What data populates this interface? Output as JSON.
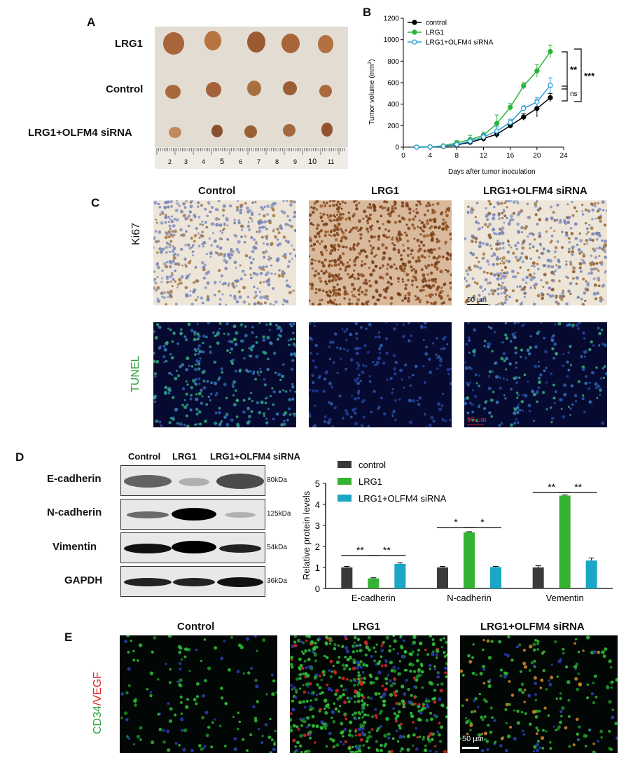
{
  "panelA": {
    "letter": "A",
    "rows": [
      "LRG1",
      "Control",
      "LRG1+OLFM4 siRNA"
    ],
    "ruler_ticks": [
      "2",
      "3",
      "4",
      "5",
      "6",
      "7",
      "8",
      "9",
      "10",
      "11"
    ]
  },
  "panelB": {
    "letter": "B",
    "significance": [
      "**",
      "***",
      "ns"
    ]
  },
  "chart_data": [
    {
      "type": "line",
      "title": "",
      "xlabel": "Days after tumor inoculation",
      "ylabel": "Tumor volume (mm3)",
      "xlim": [
        0,
        24
      ],
      "ylim": [
        0,
        1200
      ],
      "xticks": [
        "0",
        "4",
        "8",
        "12",
        "16",
        "20",
        "24"
      ],
      "yticks": [
        "0",
        "200",
        "400",
        "600",
        "800",
        "1000",
        "1200"
      ],
      "x": [
        2,
        4,
        6,
        8,
        10,
        12,
        14,
        16,
        18,
        20,
        22
      ],
      "legend_position": "top-left",
      "series": [
        {
          "name": "control",
          "color": "#000000",
          "marker": "filled",
          "values": [
            0,
            2,
            6,
            20,
            45,
            80,
            120,
            200,
            280,
            360,
            460
          ],
          "err": [
            3,
            5,
            8,
            12,
            18,
            25,
            35,
            25,
            30,
            80,
            40
          ]
        },
        {
          "name": "LRG1",
          "color": "#2bb53a",
          "marker": "filled",
          "values": [
            0,
            3,
            12,
            40,
            70,
            110,
            220,
            370,
            570,
            710,
            890
          ],
          "err": [
            3,
            5,
            10,
            20,
            40,
            30,
            80,
            35,
            30,
            60,
            60
          ]
        },
        {
          "name": "LRG1+OLFM4 siRNA",
          "color": "#2b9fd9",
          "marker": "open",
          "values": [
            0,
            2,
            8,
            25,
            55,
            95,
            150,
            230,
            360,
            420,
            575
          ],
          "err": [
            3,
            5,
            8,
            15,
            25,
            30,
            40,
            30,
            25,
            40,
            70
          ]
        }
      ]
    },
    {
      "type": "bar",
      "title": "",
      "xlabel": "",
      "ylabel": "Relative protein levels",
      "ylim": [
        0,
        5
      ],
      "yticks": [
        "0",
        "1",
        "2",
        "3",
        "4",
        "5"
      ],
      "categories": [
        "E-cadherin",
        "N-cadherin",
        "Vementin"
      ],
      "legend_position": "top-left",
      "series": [
        {
          "name": "control",
          "color": "#3a3a3a",
          "values": [
            1.0,
            1.0,
            1.0
          ],
          "err": [
            0.05,
            0.05,
            0.08
          ]
        },
        {
          "name": "LRG1",
          "color": "#35b233",
          "values": [
            0.48,
            2.67,
            4.42
          ],
          "err": [
            0.03,
            0.03,
            0.03
          ]
        },
        {
          "name": "LRG1+OLFM4 siRNA",
          "color": "#1aa6c4",
          "values": [
            1.17,
            1.02,
            1.33
          ],
          "err": [
            0.05,
            0.03,
            0.12
          ]
        }
      ],
      "significance": [
        "**",
        "**",
        "*",
        "*",
        "**",
        "**"
      ]
    }
  ],
  "panelC": {
    "letter": "C",
    "cols": [
      "Control",
      "LRG1",
      "LRG1+OLFM4 siRNA"
    ],
    "row1": "Ki67",
    "row2": "TUNEL",
    "scale1": "50 μm",
    "scale2": "50 μm"
  },
  "panelD": {
    "letter": "D",
    "cols": [
      "Control",
      "LRG1",
      "LRG1+OLFM4 siRNA"
    ],
    "proteins": [
      "E-cadherin",
      "N-cadherin",
      "Vimentin",
      "GAPDH"
    ],
    "kda": [
      "80kDa",
      "125kDa",
      "54kDa",
      "36kDa"
    ]
  },
  "panelE": {
    "letter": "E",
    "cols": [
      "Control",
      "LRG1",
      "LRG1+OLFM4 siRNA"
    ],
    "label_a": "CD34",
    "label_sep": "/",
    "label_b": "VEGF",
    "scale": "50 μm"
  },
  "colors": {
    "ihc_bg": "#ece5d8",
    "tunel_bg": "#070a30",
    "fluor_bg": "#020604"
  }
}
